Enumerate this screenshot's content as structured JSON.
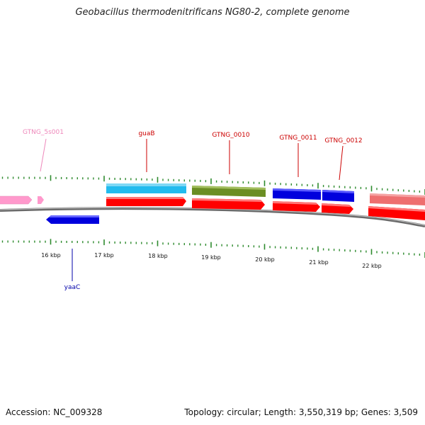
{
  "title": "Geobacillus thermodenitrificans NG80-2, complete genome",
  "footer": {
    "accession": "Accession: NC_009328",
    "summary": "Topology: circular; Length: 3,550,319 bp; Genes: 3,509"
  },
  "axis": {
    "tick_labels": [
      "16 kbp",
      "17 kbp",
      "18 kbp",
      "19 kbp",
      "20 kbp",
      "21 kbp",
      "22 kbp"
    ]
  },
  "genes": [
    {
      "name": "GTNG_5s001",
      "color": "#ee88bb"
    },
    {
      "name": "guaB",
      "color": "#cc0000"
    },
    {
      "name": "GTNG_0010",
      "color": "#cc0000"
    },
    {
      "name": "GTNG_0011",
      "color": "#cc0000"
    },
    {
      "name": "GTNG_0012",
      "color": "#cc0000"
    },
    {
      "name": "yaaC",
      "color": "#0000aa"
    }
  ],
  "colors": {
    "backbone": "#888888",
    "tick": "#2e8b2e",
    "cds_red": "#ff0000",
    "cds_blue": "#0000dd",
    "cog_cyan": "#22bbee",
    "cog_olive": "#6b8e23",
    "cog_blue": "#0000dd",
    "cog_pink": "#ee6f6f",
    "rna_pink": "#ff99cc"
  }
}
